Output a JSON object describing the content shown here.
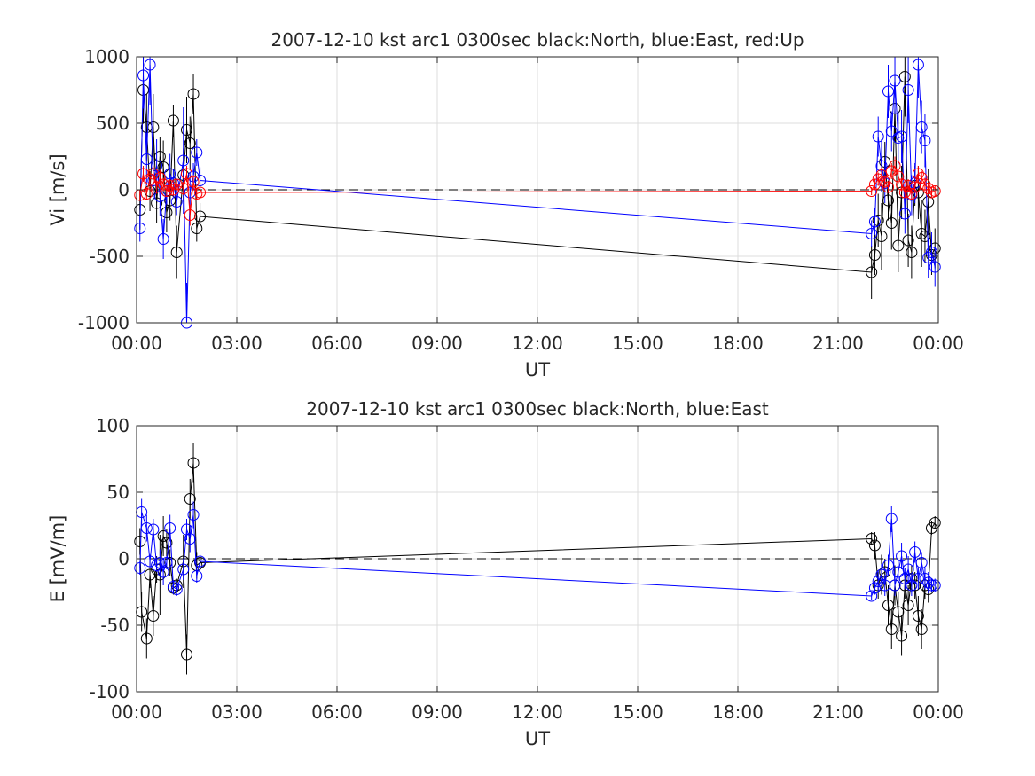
{
  "chart_data": [
    {
      "type": "line",
      "title": "2007-12-10 kst arc1 0300sec black:North, blue:East, red:Up",
      "xlabel": "UT",
      "ylabel": "Vi [m/s]",
      "xlim": [
        0,
        24
      ],
      "ylim": [
        -1000,
        1000
      ],
      "grid": true,
      "x_ticks": [
        0,
        3,
        6,
        9,
        12,
        15,
        18,
        21,
        24
      ],
      "x_tick_labels": [
        "00:00",
        "03:00",
        "06:00",
        "09:00",
        "12:00",
        "15:00",
        "18:00",
        "21:00",
        "00:00"
      ],
      "y_ticks": [
        -1000,
        -500,
        0,
        500,
        1000
      ],
      "y_tick_labels": [
        "-1000",
        "-500",
        "0",
        "500",
        "1000"
      ],
      "reference_line": 0,
      "series": [
        {
          "name": "North",
          "color": "#000000",
          "x": [
            0.1,
            0.2,
            0.3,
            0.4,
            0.5,
            0.6,
            0.7,
            0.8,
            0.9,
            1.0,
            1.1,
            1.2,
            1.4,
            1.5,
            1.6,
            1.7,
            1.8,
            1.9,
            22.0,
            22.1,
            22.2,
            22.3,
            22.4,
            22.5,
            22.6,
            22.7,
            22.8,
            22.9,
            23.0,
            23.1,
            23.2,
            23.3,
            23.4,
            23.5,
            23.6,
            23.7,
            23.8,
            23.9
          ],
          "y": [
            -150,
            750,
            470,
            -10,
            470,
            -100,
            250,
            170,
            -170,
            -80,
            520,
            -470,
            110,
            450,
            350,
            720,
            -290,
            -200,
            -620,
            -490,
            -230,
            -350,
            210,
            -80,
            -250,
            610,
            -420,
            -20,
            850,
            -380,
            -470,
            30,
            -20,
            -330,
            -350,
            -90,
            -490,
            -440
          ],
          "err": [
            150,
            250,
            250,
            150,
            250,
            150,
            150,
            200,
            150,
            150,
            120,
            200,
            200,
            250,
            200,
            150,
            100,
            100,
            200,
            150,
            200,
            250,
            150,
            150,
            200,
            250,
            200,
            200,
            300,
            200,
            200,
            150,
            200,
            250,
            200,
            250,
            150,
            150
          ]
        },
        {
          "name": "East",
          "color": "#0000ff",
          "x": [
            0.1,
            0.2,
            0.3,
            0.4,
            0.5,
            0.6,
            0.7,
            0.8,
            0.9,
            1.0,
            1.1,
            1.2,
            1.4,
            1.5,
            1.6,
            1.7,
            1.8,
            1.9,
            22.0,
            22.1,
            22.2,
            22.3,
            22.4,
            22.5,
            22.6,
            22.7,
            22.8,
            22.9,
            23.0,
            23.1,
            23.2,
            23.3,
            23.4,
            23.5,
            23.6,
            23.7,
            23.8,
            23.9
          ],
          "y": [
            -290,
            860,
            230,
            940,
            70,
            180,
            -50,
            -370,
            -10,
            120,
            50,
            -90,
            220,
            -1000,
            -20,
            100,
            280,
            70,
            -330,
            -240,
            400,
            180,
            50,
            740,
            440,
            820,
            390,
            400,
            -180,
            750,
            -40,
            50,
            940,
            470,
            370,
            -510,
            -470,
            -580
          ],
          "err": [
            100,
            250,
            200,
            300,
            150,
            200,
            150,
            150,
            100,
            150,
            100,
            100,
            400,
            300,
            150,
            100,
            100,
            100,
            100,
            100,
            150,
            200,
            150,
            200,
            150,
            250,
            200,
            200,
            150,
            250,
            150,
            150,
            250,
            200,
            200,
            150,
            150,
            150
          ]
        },
        {
          "name": "Up",
          "color": "#ff0000",
          "x": [
            0.1,
            0.2,
            0.3,
            0.4,
            0.5,
            0.6,
            0.7,
            0.8,
            0.9,
            1.0,
            1.1,
            1.2,
            1.4,
            1.5,
            1.6,
            1.7,
            1.8,
            1.9,
            22.0,
            22.1,
            22.2,
            22.3,
            22.4,
            22.5,
            22.6,
            22.7,
            22.8,
            22.9,
            23.0,
            23.1,
            23.2,
            23.3,
            23.4,
            23.5,
            23.6,
            23.7,
            23.8,
            23.9
          ],
          "y": [
            -40,
            120,
            -30,
            80,
            120,
            20,
            90,
            40,
            -10,
            30,
            0,
            40,
            10,
            120,
            -190,
            60,
            -30,
            -20,
            -10,
            40,
            80,
            110,
            60,
            20,
            140,
            180,
            100,
            40,
            -20,
            30,
            -30,
            20,
            120,
            90,
            40,
            10,
            -20,
            -10
          ],
          "err": [
            40,
            60,
            50,
            60,
            60,
            50,
            60,
            50,
            40,
            50,
            40,
            40,
            50,
            60,
            80,
            50,
            40,
            40,
            30,
            40,
            50,
            60,
            50,
            40,
            60,
            70,
            60,
            50,
            40,
            50,
            40,
            40,
            60,
            50,
            50,
            40,
            40,
            40
          ]
        }
      ]
    },
    {
      "type": "line",
      "title": "2007-12-10 kst arc1 0300sec black:North, blue:East",
      "xlabel": "UT",
      "ylabel": "E [mV/m]",
      "xlim": [
        0,
        24
      ],
      "ylim": [
        -100,
        100
      ],
      "grid": true,
      "x_ticks": [
        0,
        3,
        6,
        9,
        12,
        15,
        18,
        21,
        24
      ],
      "x_tick_labels": [
        "00:00",
        "03:00",
        "06:00",
        "09:00",
        "12:00",
        "15:00",
        "18:00",
        "21:00",
        "00:00"
      ],
      "y_ticks": [
        -100,
        -50,
        0,
        50,
        100
      ],
      "y_tick_labels": [
        "-100",
        "-50",
        "0",
        "50",
        "100"
      ],
      "reference_line": 0,
      "series": [
        {
          "name": "North",
          "color": "#000000",
          "x": [
            0.1,
            0.15,
            0.3,
            0.4,
            0.5,
            0.6,
            0.7,
            0.8,
            0.9,
            1.0,
            1.1,
            1.2,
            1.4,
            1.5,
            1.6,
            1.7,
            1.8,
            1.9,
            22.0,
            22.1,
            22.2,
            22.3,
            22.4,
            22.5,
            22.6,
            22.7,
            22.8,
            22.9,
            23.0,
            23.1,
            23.2,
            23.3,
            23.4,
            23.5,
            23.6,
            23.7,
            23.8,
            23.9
          ],
          "y": [
            13,
            -40,
            -60,
            -12,
            -43,
            -8,
            -12,
            17,
            12,
            -3,
            -22,
            -20,
            -2,
            -72,
            45,
            72,
            -5,
            -3,
            15,
            10,
            -20,
            -12,
            -10,
            -35,
            -53,
            -20,
            -40,
            -58,
            -20,
            -35,
            -15,
            -20,
            -43,
            -53,
            -20,
            -23,
            23,
            27
          ],
          "err": [
            10,
            15,
            15,
            10,
            15,
            10,
            30,
            15,
            10,
            10,
            5,
            5,
            20,
            15,
            15,
            15,
            10,
            5,
            5,
            10,
            10,
            15,
            10,
            15,
            15,
            15,
            15,
            15,
            10,
            15,
            10,
            10,
            15,
            15,
            10,
            10,
            5,
            5
          ]
        },
        {
          "name": "East",
          "color": "#0000ff",
          "x": [
            0.1,
            0.15,
            0.3,
            0.4,
            0.5,
            0.6,
            0.7,
            0.8,
            0.9,
            1.0,
            1.1,
            1.2,
            1.4,
            1.5,
            1.6,
            1.7,
            1.8,
            1.9,
            22.0,
            22.1,
            22.2,
            22.3,
            22.4,
            22.5,
            22.6,
            22.7,
            22.8,
            22.9,
            23.0,
            23.1,
            23.2,
            23.3,
            23.4,
            23.5,
            23.6,
            23.7,
            23.8,
            23.9
          ],
          "y": [
            -7,
            35,
            23,
            -2,
            22,
            -5,
            -3,
            -10,
            -3,
            23,
            -21,
            -23,
            -8,
            22,
            15,
            33,
            -13,
            -2,
            -28,
            -22,
            -17,
            -12,
            -20,
            -5,
            30,
            -20,
            -10,
            2,
            -15,
            -8,
            -20,
            5,
            -15,
            -3,
            -15,
            -18,
            -20,
            -20
          ],
          "err": [
            5,
            10,
            10,
            5,
            8,
            5,
            10,
            10,
            5,
            10,
            5,
            5,
            8,
            8,
            10,
            10,
            5,
            5,
            3,
            5,
            8,
            8,
            8,
            8,
            10,
            8,
            8,
            10,
            8,
            10,
            8,
            8,
            8,
            8,
            8,
            8,
            5,
            5
          ]
        }
      ]
    }
  ]
}
